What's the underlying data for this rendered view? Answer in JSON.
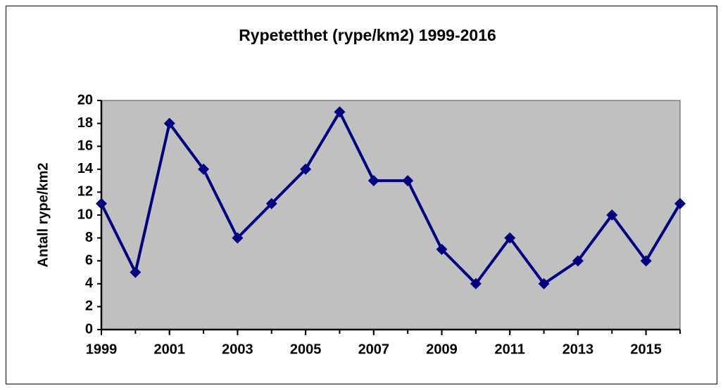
{
  "chart_data": {
    "type": "line",
    "title": "Rypetetthet (rype/km2)  1999-2016",
    "y_label": "Antall  rype/km2",
    "x": [
      1999,
      2000,
      2001,
      2002,
      2003,
      2004,
      2005,
      2006,
      2007,
      2008,
      2009,
      2010,
      2011,
      2012,
      2013,
      2014,
      2015,
      2016
    ],
    "series": [
      {
        "name": "Rypetetthet",
        "color": "#000080",
        "values": [
          11,
          5,
          18,
          14,
          8,
          11,
          14,
          19,
          13,
          13,
          7,
          4,
          8,
          4,
          6,
          10,
          6,
          11
        ]
      }
    ],
    "xlim": [
      1999,
      2016
    ],
    "xticks": [
      1999,
      2001,
      2003,
      2005,
      2007,
      2009,
      2011,
      2013,
      2015
    ],
    "ylim": [
      0,
      20
    ],
    "yticks": [
      0,
      2,
      4,
      6,
      8,
      10,
      12,
      14,
      16,
      18,
      20
    ]
  }
}
